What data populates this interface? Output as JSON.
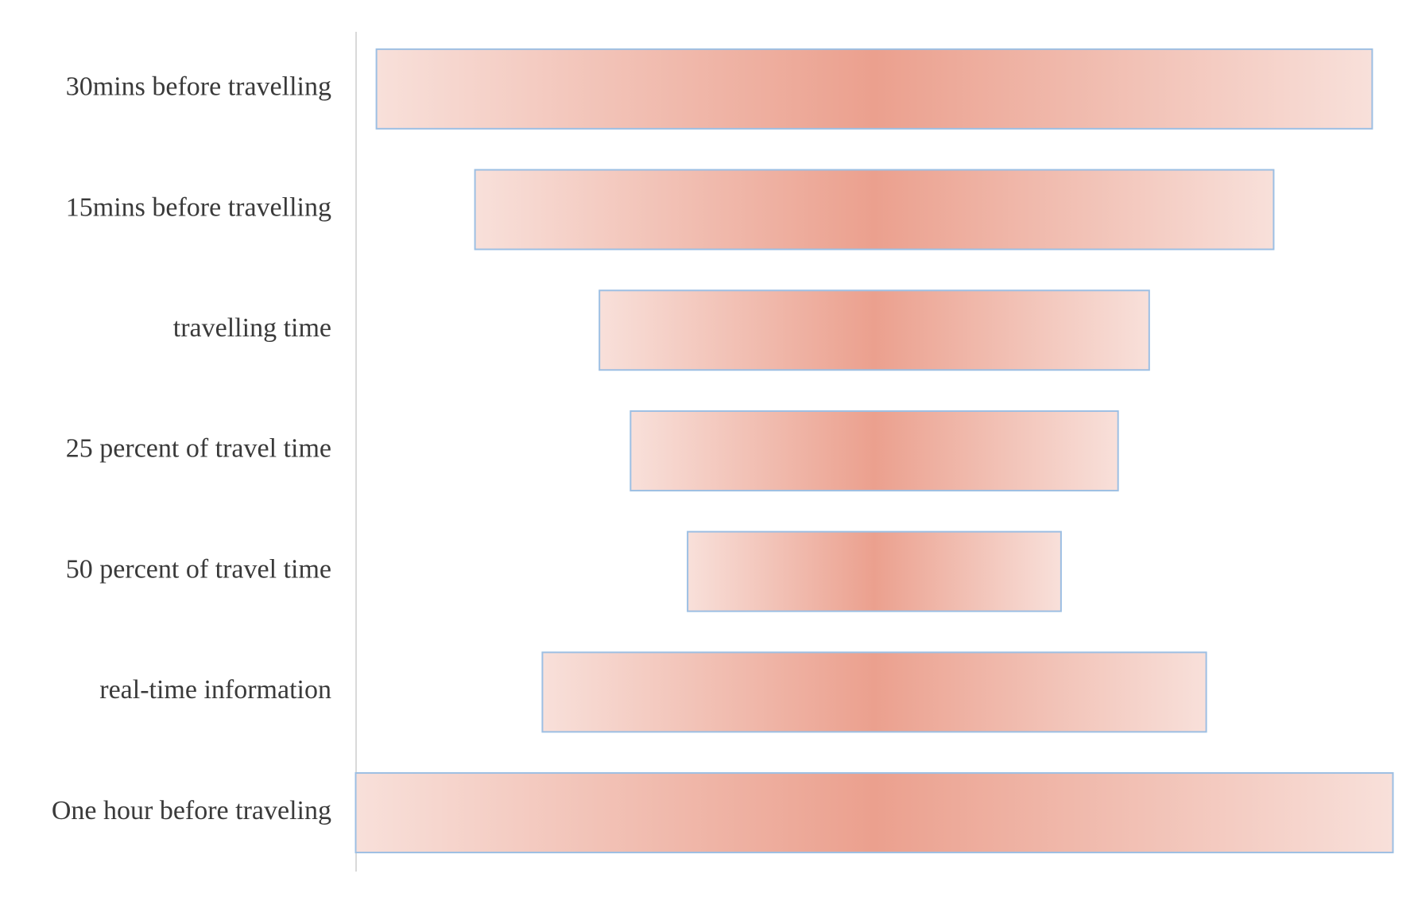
{
  "chart_data": {
    "type": "funnel",
    "categories": [
      "30mins before travelling",
      "15mins before travelling",
      "travelling time",
      "25 percent of travel time",
      "50 percent of travel time",
      "real-time information",
      "One hour before traveling"
    ],
    "values": [
      96,
      77,
      53,
      47,
      36,
      64,
      100
    ],
    "xlim": [
      0,
      100
    ],
    "color": "#eba08e",
    "edge_color": "#f8e0da",
    "border_color": "#9dbfe3"
  }
}
